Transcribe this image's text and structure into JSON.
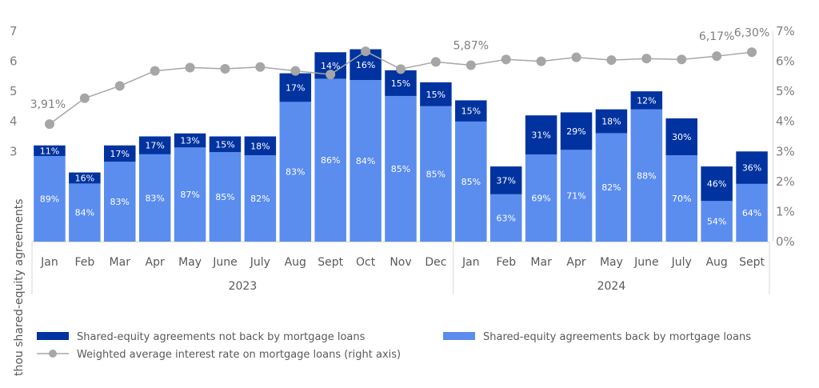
{
  "chart_data": {
    "type": "bar",
    "stacked": true,
    "categories": [
      "Jan",
      "Feb",
      "Mar",
      "Apr",
      "May",
      "June",
      "July",
      "Aug",
      "Sept",
      "Oct",
      "Nov",
      "Dec",
      "Jan",
      "Feb",
      "Mar",
      "Apr",
      "May",
      "June",
      "July",
      "Aug",
      "Sept"
    ],
    "years": [
      {
        "label": "2023",
        "start": 0,
        "end": 11
      },
      {
        "label": "2024",
        "start": 12,
        "end": 20
      }
    ],
    "totals": [
      3.2,
      2.3,
      3.2,
      3.5,
      3.6,
      3.5,
      3.5,
      5.6,
      6.3,
      6.4,
      5.7,
      5.3,
      4.7,
      2.5,
      4.2,
      4.3,
      4.4,
      5.0,
      4.1,
      2.5,
      3.0
    ],
    "series": [
      {
        "name": "Shared-equity agreements not back by mortgage loans",
        "color": "#0033a0",
        "percent_labels": [
          "11%",
          "16%",
          "17%",
          "17%",
          "13%",
          "15%",
          "18%",
          "17%",
          "14%",
          "16%",
          "15%",
          "15%",
          "15%",
          "37%",
          "31%",
          "29%",
          "18%",
          "12%",
          "30%",
          "46%",
          "36%"
        ]
      },
      {
        "name": "Shared-equity agreements back by mortgage loans",
        "color": "#5b8def",
        "percent_labels": [
          "89%",
          "84%",
          "83%",
          "83%",
          "87%",
          "85%",
          "82%",
          "83%",
          "86%",
          "84%",
          "85%",
          "85%",
          "85%",
          "63%",
          "69%",
          "71%",
          "82%",
          "88%",
          "70%",
          "54%",
          "64%"
        ]
      }
    ],
    "line": {
      "name": "Weighted average interest rate on mortgage loans (right axis)",
      "color": "#a6a6a6",
      "values": [
        3.91,
        4.77,
        5.18,
        5.68,
        5.79,
        5.75,
        5.81,
        5.68,
        5.56,
        6.33,
        5.74,
        5.98,
        5.87,
        6.06,
        6.0,
        6.13,
        6.04,
        6.09,
        6.06,
        6.17,
        6.3
      ],
      "labels": [
        {
          "index": 0,
          "text": "3,91%"
        },
        {
          "index": 12,
          "text": "5,87%"
        },
        {
          "index": 19,
          "text": "6,17%"
        },
        {
          "index": 20,
          "text": "6,30%"
        }
      ]
    },
    "ylabel": "thou shared-equity agreements",
    "y_left": {
      "min": 0,
      "max": 7,
      "ticks": [
        "",
        "",
        "",
        "3",
        "4",
        "5",
        "6",
        "7"
      ]
    },
    "y_right": {
      "min": 0,
      "max": 7,
      "ticks": [
        "0%",
        "1%",
        "2%",
        "3%",
        "4%",
        "5%",
        "6%",
        "7%"
      ]
    },
    "legend_position": "bottom"
  }
}
